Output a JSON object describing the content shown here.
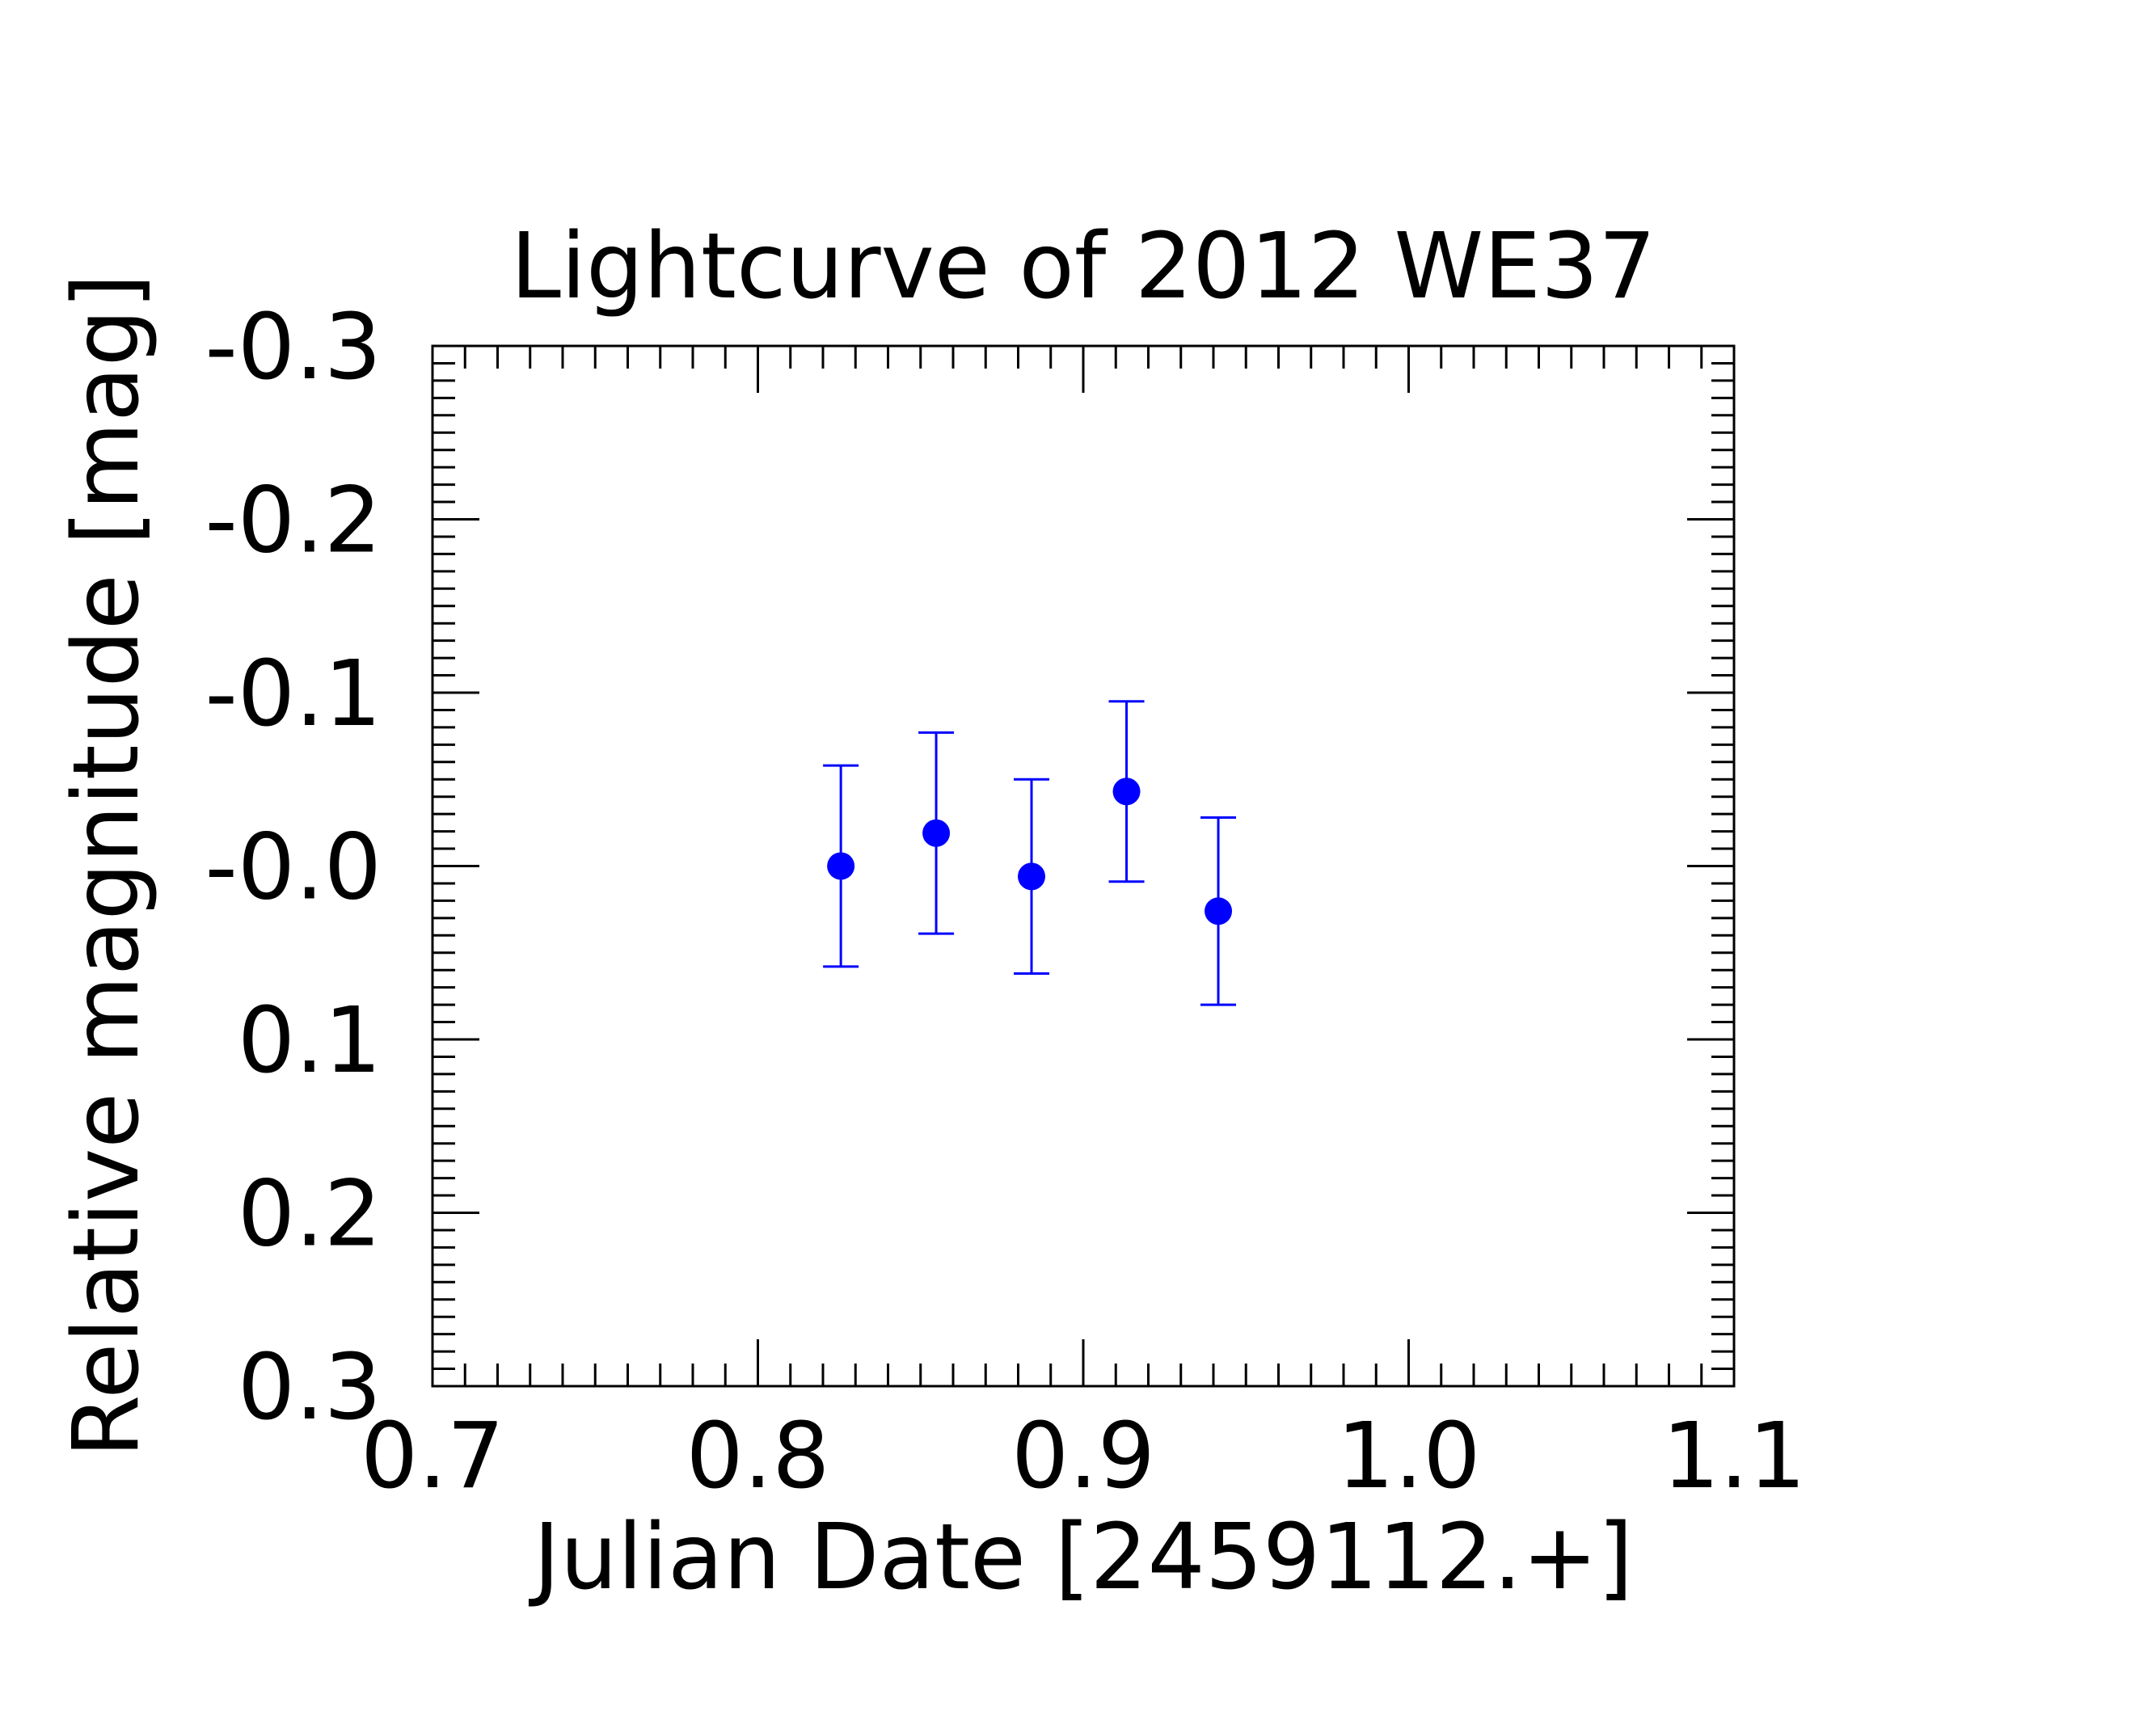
{
  "chart_data": {
    "type": "scatter",
    "title": "Lightcurve of 2012 WE37",
    "xlabel": "Julian Date [2459112.+]",
    "ylabel": "Relative magnitude [mag]",
    "xlim": [
      0.7,
      1.1
    ],
    "ylim": [
      0.3,
      -0.3
    ],
    "y_inverted": true,
    "x_ticks": [
      "0.7",
      "0.8",
      "0.9",
      "1.0",
      "1.1"
    ],
    "y_ticks": [
      "-0.3",
      "-0.2",
      "-0.1",
      "-0.0",
      "0.1",
      "0.2",
      "0.3"
    ],
    "grid": false,
    "legend": "none",
    "marker_color": "#0000ff",
    "series": [
      {
        "x": [
          0.8255,
          0.8548,
          0.8841,
          0.9133,
          0.9415
        ],
        "y": [
          0.0,
          -0.019,
          0.006,
          -0.043,
          0.026
        ],
        "yerr": [
          0.058,
          0.058,
          0.056,
          0.052,
          0.054
        ]
      }
    ]
  }
}
